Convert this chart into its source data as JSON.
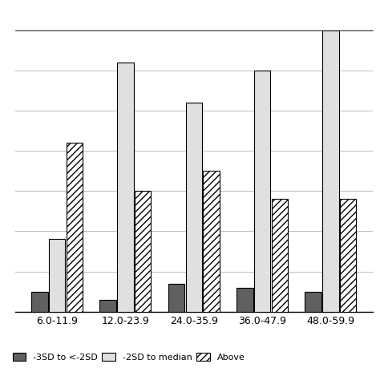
{
  "categories": [
    "6.0-11.9",
    "12.0-23.9",
    "24.0-35.9",
    "36.0-47.9",
    "48.0-59.9"
  ],
  "series": {
    "-3SD to <-2SD": [
      5,
      3,
      7,
      6,
      5
    ],
    "-2SD to median": [
      18,
      62,
      52,
      60,
      70
    ],
    "Above": [
      42,
      30,
      35,
      28,
      28
    ]
  },
  "ylim": [
    0,
    70
  ],
  "yticks": [
    0,
    10,
    20,
    30,
    40,
    50,
    60,
    70
  ],
  "legend_labels": [
    "-3SD to <-2SD",
    "-2SD to median",
    "Above"
  ],
  "background_color": "#ffffff",
  "grid_color": "#bbbbbb",
  "bar_width": 0.24
}
